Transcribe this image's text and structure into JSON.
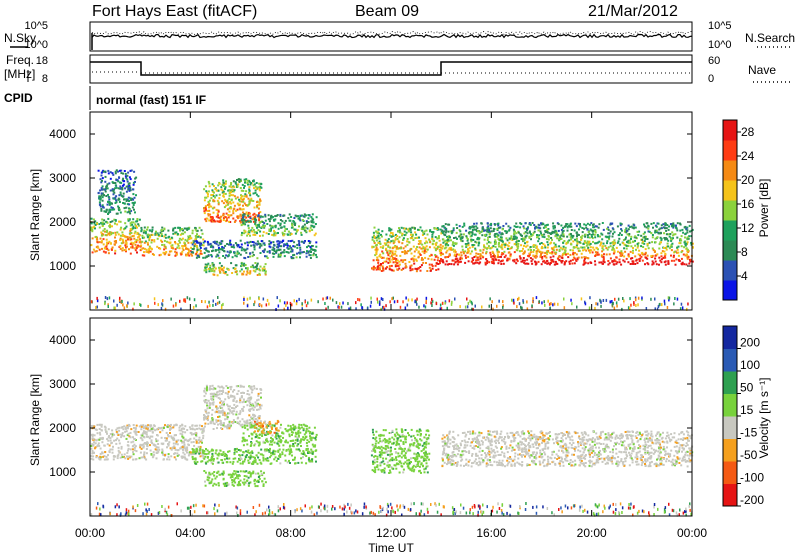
{
  "header": {
    "station": "Fort Hays East (fitACF)",
    "beam": "Beam 09",
    "date": "21/Mar/2012"
  },
  "noise_panel": {
    "left_label": "N.Sky",
    "right_label": "N.Search",
    "left_ticks": [
      "10^5",
      "10^0"
    ],
    "right_ticks": [
      "10^5",
      "10^0"
    ]
  },
  "freq_panel": {
    "left_label_1": "Freq.",
    "left_label_2": "[MHz]",
    "right_label": "Nave",
    "left_ticks": [
      "18",
      "8"
    ],
    "right_ticks": [
      "60",
      "0"
    ]
  },
  "cpid": {
    "label": "CPID",
    "value": "normal (fast) 151 IF"
  },
  "colors": {
    "power": [
      "#0a14e6",
      "#2b51b4",
      "#2c8a55",
      "#1ea15c",
      "#8bd23c",
      "#f5c31a",
      "#f58a14",
      "#ff3c14",
      "#e61414"
    ],
    "velocity": [
      "#e61414",
      "#f55a14",
      "#f5a01e",
      "#c8c8c0",
      "#78d23c",
      "#2ea050",
      "#2a5ab4",
      "#1428a0"
    ]
  },
  "chart_data": [
    {
      "type": "heatmap",
      "title": "",
      "xlabel": "",
      "ylabel": "Slant Range [km]",
      "x_range_hours": [
        0,
        24
      ],
      "ylim": [
        0,
        4500
      ],
      "yticks": [
        "1000",
        "2000",
        "3000",
        "4000"
      ],
      "colorbar": {
        "label": "Power [dB]",
        "ticks": [
          "4",
          "8",
          "12",
          "16",
          "20",
          "24",
          "28"
        ],
        "range": [
          0,
          30
        ]
      },
      "bands": [
        {
          "t0": 0.0,
          "t1": 2.0,
          "r0": 1300,
          "r1": 2100,
          "level": 0.72
        },
        {
          "t0": 0.3,
          "t1": 1.8,
          "r0": 2200,
          "r1": 3200,
          "level": 0.3
        },
        {
          "t0": 2.0,
          "t1": 4.5,
          "r0": 1250,
          "r1": 1900,
          "level": 0.65
        },
        {
          "t0": 4.5,
          "t1": 6.8,
          "r0": 2000,
          "r1": 3000,
          "level": 0.7
        },
        {
          "t0": 4.0,
          "t1": 9.0,
          "r0": 1200,
          "r1": 1600,
          "level": 0.3
        },
        {
          "t0": 6.0,
          "t1": 9.0,
          "r0": 1700,
          "r1": 2200,
          "level": 0.45
        },
        {
          "t0": 4.5,
          "t1": 7.0,
          "r0": 800,
          "r1": 1100,
          "level": 0.6
        },
        {
          "t0": 11.2,
          "t1": 14.0,
          "r0": 900,
          "r1": 1900,
          "level": 0.75
        },
        {
          "t0": 14.0,
          "t1": 24.0,
          "r0": 1050,
          "r1": 1450,
          "level": 0.92
        },
        {
          "t0": 14.0,
          "t1": 24.0,
          "r0": 1450,
          "r1": 2000,
          "level": 0.45
        }
      ]
    },
    {
      "type": "heatmap",
      "title": "",
      "xlabel": "Time UT",
      "ylabel": "Slant Range [km]",
      "x_range_hours": [
        0,
        24
      ],
      "ylim": [
        0,
        4500
      ],
      "yticks": [
        "1000",
        "2000",
        "3000",
        "4000"
      ],
      "xticks": [
        "00:00",
        "04:00",
        "08:00",
        "12:00",
        "16:00",
        "20:00",
        "00:00"
      ],
      "colorbar": {
        "label": "Velocity [m s⁻¹]",
        "ticks": [
          "200",
          "100",
          "50",
          "15",
          "-15",
          "-50",
          "-100",
          "-200"
        ]
      },
      "bands": [
        {
          "t0": 0.0,
          "t1": 4.5,
          "r0": 1300,
          "r1": 2100,
          "level": 3
        },
        {
          "t0": 4.5,
          "t1": 6.8,
          "r0": 2000,
          "r1": 3000,
          "level": 3
        },
        {
          "t0": 6.0,
          "t1": 9.0,
          "r0": 1600,
          "r1": 2100,
          "level": 4
        },
        {
          "t0": 6.5,
          "t1": 7.5,
          "r0": 1900,
          "r1": 2200,
          "level": 2
        },
        {
          "t0": 4.0,
          "t1": 9.0,
          "r0": 1200,
          "r1": 1550,
          "level": 4
        },
        {
          "t0": 4.5,
          "t1": 7.0,
          "r0": 700,
          "r1": 1050,
          "level": 4
        },
        {
          "t0": 11.2,
          "t1": 13.5,
          "r0": 1000,
          "r1": 2000,
          "level": 4
        },
        {
          "t0": 14.0,
          "t1": 24.0,
          "r0": 1150,
          "r1": 1950,
          "level": 3
        }
      ]
    }
  ]
}
